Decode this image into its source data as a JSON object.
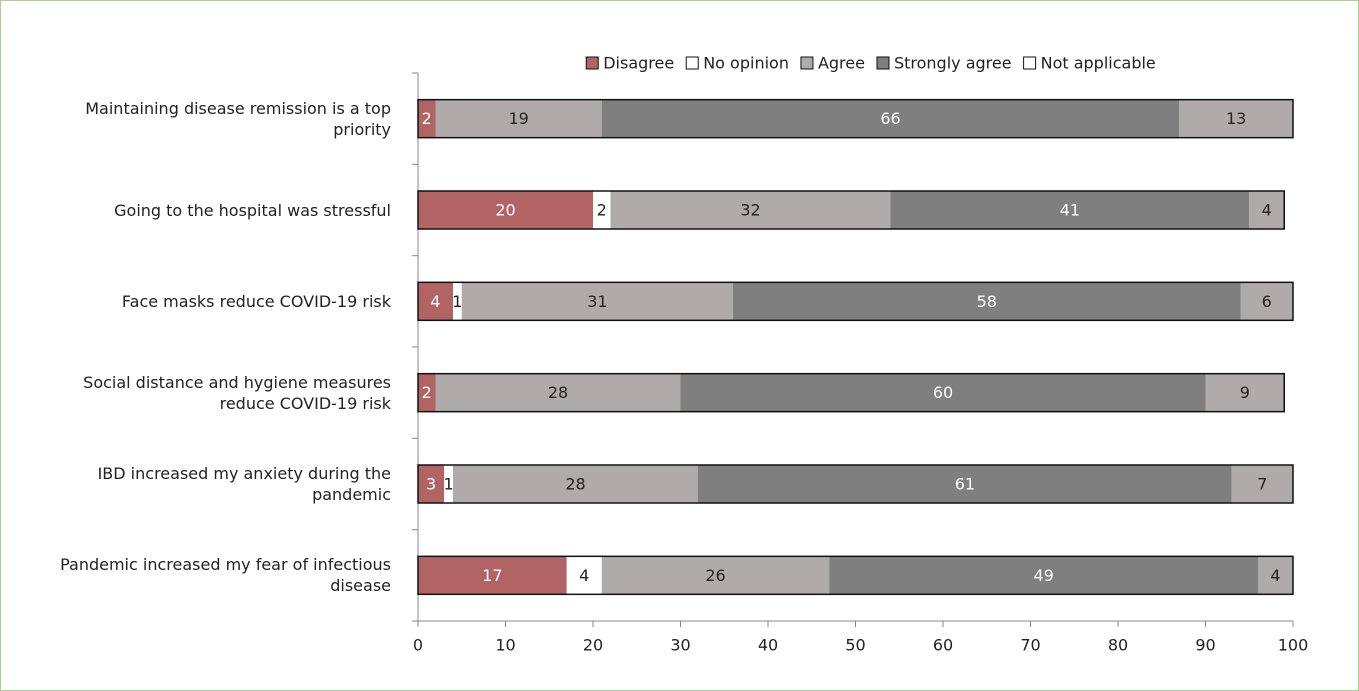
{
  "chart_data": {
    "type": "stacked_barh",
    "categories": [
      "Maintaining disease remission is a top priority",
      "Going to the hospital was stressful",
      "Face masks reduce COVID-19 risk",
      "Social distance and hygiene measures reduce COVID-19 risk",
      "IBD increased my anxiety during the pandemic",
      "Pandemic increased my fear of infectious disease"
    ],
    "series": [
      {
        "name": "Disagree",
        "color": "#b26464",
        "values": [
          2,
          20,
          4,
          2,
          3,
          17
        ]
      },
      {
        "name": "No opinion",
        "color": "#ffffff",
        "values": [
          null,
          2,
          1,
          null,
          1,
          4
        ]
      },
      {
        "name": "Agree",
        "color": "#b0abab",
        "values": [
          19,
          32,
          31,
          28,
          28,
          26
        ]
      },
      {
        "name": "Strongly agree",
        "color": "#7f7f7f",
        "values": [
          66,
          41,
          58,
          60,
          61,
          49
        ]
      },
      {
        "name": "Not applicable",
        "color": "#b0abab",
        "legend_color": "#ffffff",
        "values": [
          13,
          4,
          6,
          9,
          7,
          4
        ]
      }
    ],
    "xlim": [
      0,
      100
    ],
    "xticks": [
      0,
      10,
      20,
      30,
      40,
      50,
      60,
      70,
      80,
      90,
      100
    ],
    "legend": "top"
  }
}
